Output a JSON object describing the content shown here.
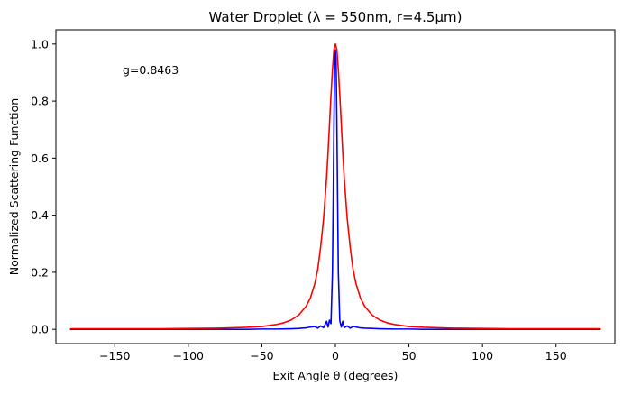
{
  "chart_data": {
    "type": "line",
    "title": "Water Droplet (λ = 550nm, r=4.5μm)",
    "xlabel": "Exit Angle θ (degrees)",
    "ylabel": "Normalized Scattering Function",
    "xlim": [
      -190,
      190
    ],
    "ylim": [
      -0.05,
      1.05
    ],
    "x_ticks": [
      -150,
      -100,
      -50,
      0,
      50,
      100,
      150
    ],
    "x_tick_labels": [
      "−150",
      "−100",
      "−50",
      "0",
      "50",
      "100",
      "150"
    ],
    "y_ticks": [
      0.0,
      0.2,
      0.4,
      0.6,
      0.8,
      1.0
    ],
    "y_tick_labels": [
      "0.0",
      "0.2",
      "0.4",
      "0.6",
      "0.8",
      "1.0"
    ],
    "grid": false,
    "legend": "none",
    "annotation": "g=0.8463",
    "series": [
      {
        "color": "#0000ff",
        "x": [
          -180,
          -150,
          -100,
          -60,
          -50,
          -40,
          -30,
          -25,
          -20,
          -17,
          -14,
          -12,
          -10,
          -8,
          -6,
          -5,
          -4,
          -3,
          -2,
          -1.5,
          -1,
          -0.5,
          0,
          0.5,
          1,
          1.5,
          2,
          3,
          4,
          5,
          6,
          8,
          10,
          12,
          14,
          17,
          20,
          25,
          30,
          40,
          50,
          60,
          100,
          150,
          180
        ],
        "y": [
          0.0,
          0.0,
          0.0,
          0.0,
          0.001,
          0.001,
          0.002,
          0.003,
          0.005,
          0.008,
          0.01,
          0.004,
          0.012,
          0.006,
          0.028,
          0.008,
          0.032,
          0.02,
          0.2,
          0.45,
          0.72,
          0.93,
          0.98,
          0.93,
          0.72,
          0.45,
          0.2,
          0.03,
          0.008,
          0.028,
          0.006,
          0.012,
          0.004,
          0.01,
          0.008,
          0.005,
          0.004,
          0.003,
          0.002,
          0.001,
          0.001,
          0.0,
          0.0,
          0.0,
          0.0
        ]
      },
      {
        "color": "#ff0000",
        "x": [
          -180,
          -150,
          -120,
          -100,
          -80,
          -60,
          -50,
          -40,
          -35,
          -30,
          -25,
          -20,
          -17,
          -14,
          -12,
          -10,
          -8,
          -6,
          -5,
          -4,
          -3,
          -2,
          -1,
          0,
          1,
          2,
          3,
          4,
          5,
          6,
          8,
          10,
          12,
          14,
          17,
          20,
          25,
          30,
          35,
          40,
          50,
          60,
          80,
          100,
          120,
          150,
          180
        ],
        "y": [
          0.002,
          0.002,
          0.002,
          0.003,
          0.004,
          0.007,
          0.01,
          0.017,
          0.023,
          0.033,
          0.05,
          0.08,
          0.11,
          0.16,
          0.21,
          0.29,
          0.39,
          0.53,
          0.62,
          0.72,
          0.82,
          0.91,
          0.98,
          1.0,
          0.98,
          0.91,
          0.82,
          0.72,
          0.62,
          0.53,
          0.39,
          0.29,
          0.21,
          0.16,
          0.11,
          0.08,
          0.05,
          0.033,
          0.023,
          0.017,
          0.01,
          0.007,
          0.004,
          0.003,
          0.002,
          0.002,
          0.002
        ]
      }
    ]
  }
}
